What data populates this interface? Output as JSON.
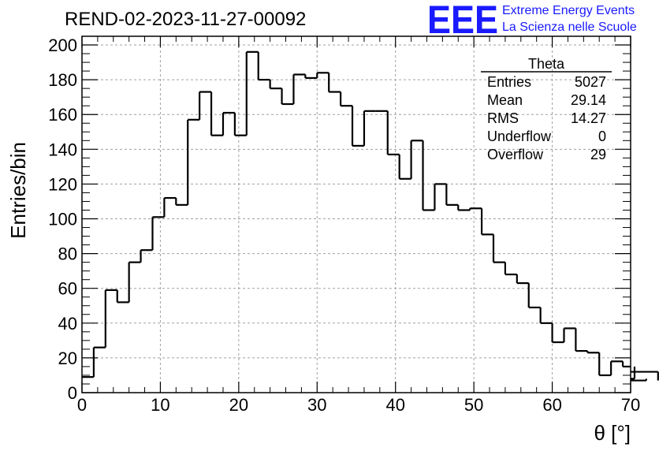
{
  "chart_data": {
    "type": "bar",
    "title": "REND-02-2023-11-27-00092",
    "xlabel": "θ [°]",
    "ylabel": "Entries/bin",
    "xlim": [
      0,
      70
    ],
    "ylim": [
      0,
      205
    ],
    "grid": true,
    "bin_width": 1.5,
    "x_ticks": [
      0,
      10,
      20,
      30,
      40,
      50,
      60,
      70
    ],
    "y_ticks": [
      0,
      20,
      40,
      60,
      80,
      100,
      120,
      140,
      160,
      180,
      200
    ],
    "values": [
      9,
      26,
      59,
      52,
      75,
      82,
      101,
      112,
      108,
      157,
      173,
      148,
      161,
      148,
      196,
      180,
      175,
      166,
      183,
      181,
      184,
      173,
      165,
      142,
      162,
      162,
      137,
      123,
      145,
      105,
      120,
      108,
      105,
      106,
      91,
      75,
      68,
      63,
      49,
      40,
      29,
      37,
      24,
      23,
      10,
      18,
      15,
      8,
      7,
      12
    ],
    "stats": {
      "name": "Theta",
      "rows": [
        {
          "label": "Entries",
          "value": "5027"
        },
        {
          "label": "Mean",
          "value": "29.14"
        },
        {
          "label": "RMS",
          "value": "14.27"
        },
        {
          "label": "Underflow",
          "value": "0"
        },
        {
          "label": "Overflow",
          "value": "29"
        }
      ]
    }
  },
  "logo": {
    "mark": "EEE",
    "line1": "Extreme Energy Events",
    "line2": "La Scienza nelle Scuole"
  }
}
